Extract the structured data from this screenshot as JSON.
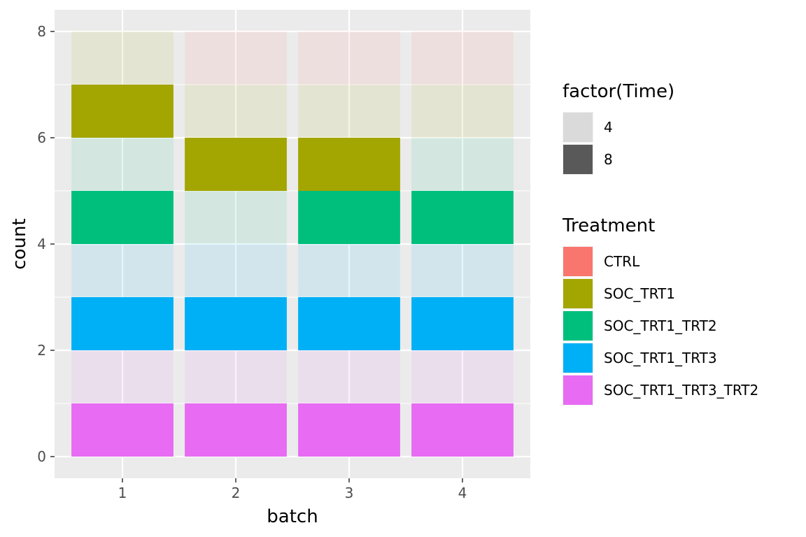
{
  "chart_data": {
    "type": "bar",
    "stacked": true,
    "xlabel": "batch",
    "ylabel": "count",
    "categories": [
      "1",
      "2",
      "3",
      "4"
    ],
    "ylim": [
      0,
      8
    ],
    "yticks": [
      0,
      2,
      4,
      6,
      8
    ],
    "grid": true,
    "panel_background": "#ebebeb",
    "legend_position": "right",
    "alpha_low": 0.1,
    "segments": [
      [
        {
          "treatment": "SOC_TRT1_TRT3_TRT2",
          "time": "8",
          "value": 1
        },
        {
          "treatment": "SOC_TRT1_TRT3_TRT2",
          "time": "4",
          "value": 1
        },
        {
          "treatment": "SOC_TRT1_TRT3",
          "time": "8",
          "value": 1
        },
        {
          "treatment": "SOC_TRT1_TRT3",
          "time": "4",
          "value": 1
        },
        {
          "treatment": "SOC_TRT1_TRT2",
          "time": "8",
          "value": 1
        },
        {
          "treatment": "SOC_TRT1_TRT2",
          "time": "4",
          "value": 1
        },
        {
          "treatment": "SOC_TRT1",
          "time": "8",
          "value": 1
        },
        {
          "treatment": "SOC_TRT1",
          "time": "4",
          "value": 1
        }
      ],
      [
        {
          "treatment": "SOC_TRT1_TRT3_TRT2",
          "time": "8",
          "value": 1
        },
        {
          "treatment": "SOC_TRT1_TRT3_TRT2",
          "time": "4",
          "value": 1
        },
        {
          "treatment": "SOC_TRT1_TRT3",
          "time": "8",
          "value": 1
        },
        {
          "treatment": "SOC_TRT1_TRT3",
          "time": "4",
          "value": 1
        },
        {
          "treatment": "SOC_TRT1_TRT2",
          "time": "4",
          "value": 1
        },
        {
          "treatment": "SOC_TRT1",
          "time": "8",
          "value": 1
        },
        {
          "treatment": "SOC_TRT1",
          "time": "4",
          "value": 1
        },
        {
          "treatment": "CTRL",
          "time": "4",
          "value": 1
        }
      ],
      [
        {
          "treatment": "SOC_TRT1_TRT3_TRT2",
          "time": "8",
          "value": 1
        },
        {
          "treatment": "SOC_TRT1_TRT3_TRT2",
          "time": "4",
          "value": 1
        },
        {
          "treatment": "SOC_TRT1_TRT3",
          "time": "8",
          "value": 1
        },
        {
          "treatment": "SOC_TRT1_TRT3",
          "time": "4",
          "value": 1
        },
        {
          "treatment": "SOC_TRT1_TRT2",
          "time": "8",
          "value": 1
        },
        {
          "treatment": "SOC_TRT1",
          "time": "8",
          "value": 1
        },
        {
          "treatment": "SOC_TRT1",
          "time": "4",
          "value": 1
        },
        {
          "treatment": "CTRL",
          "time": "4",
          "value": 1
        }
      ],
      [
        {
          "treatment": "SOC_TRT1_TRT3_TRT2",
          "time": "8",
          "value": 1
        },
        {
          "treatment": "SOC_TRT1_TRT3_TRT2",
          "time": "4",
          "value": 1
        },
        {
          "treatment": "SOC_TRT1_TRT3",
          "time": "8",
          "value": 1
        },
        {
          "treatment": "SOC_TRT1_TRT3",
          "time": "4",
          "value": 1
        },
        {
          "treatment": "SOC_TRT1_TRT2",
          "time": "8",
          "value": 1
        },
        {
          "treatment": "SOC_TRT1_TRT2",
          "time": "4",
          "value": 1
        },
        {
          "treatment": "SOC_TRT1",
          "time": "4",
          "value": 1
        },
        {
          "treatment": "CTRL",
          "time": "4",
          "value": 1
        }
      ]
    ],
    "legends": [
      {
        "title": "factor(Time)",
        "kind": "alpha",
        "items": [
          {
            "label": "4",
            "color": "#dadada"
          },
          {
            "label": "8",
            "color": "#595959"
          }
        ]
      },
      {
        "title": "Treatment",
        "kind": "fill",
        "items": [
          {
            "label": "CTRL",
            "color": "#f8766d"
          },
          {
            "label": "SOC_TRT1",
            "color": "#a3a500"
          },
          {
            "label": "SOC_TRT1_TRT2",
            "color": "#00bf7d"
          },
          {
            "label": "SOC_TRT1_TRT3",
            "color": "#00b0f6"
          },
          {
            "label": "SOC_TRT1_TRT3_TRT2",
            "color": "#e76bf3"
          }
        ]
      }
    ]
  }
}
